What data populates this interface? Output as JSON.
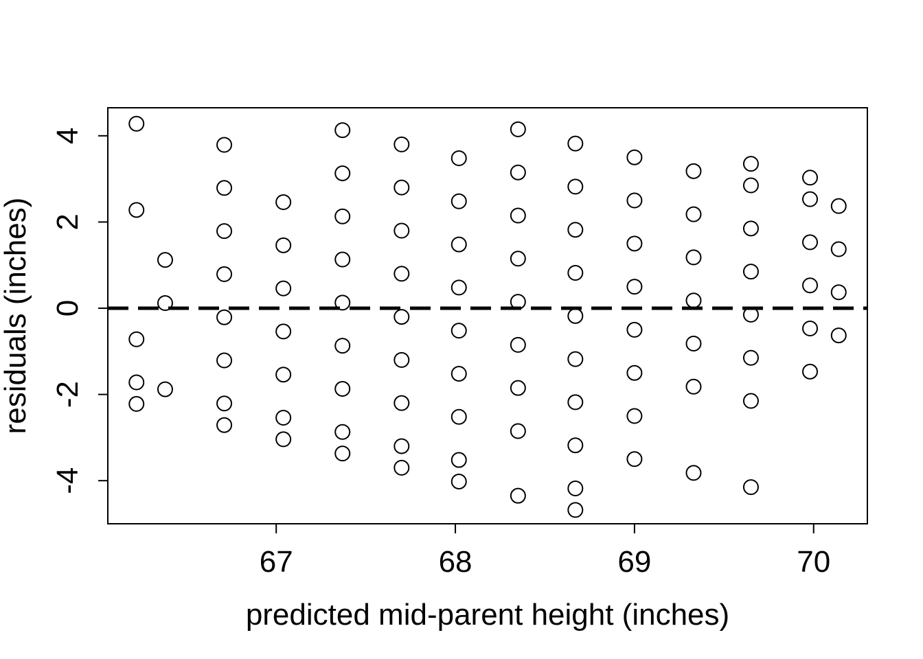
{
  "chart_data": {
    "type": "scatter",
    "title": "",
    "xlabel": "predicted mid-parent height (inches)",
    "ylabel": "residuals (inches)",
    "xlim": [
      66.06,
      70.3
    ],
    "ylim": [
      -5.0,
      4.65
    ],
    "x_ticks": [
      67,
      68,
      69,
      70
    ],
    "y_ticks": [
      -4,
      -2,
      0,
      2,
      4
    ],
    "grid": false,
    "legend": "none",
    "marker": "open-circle",
    "reference_line": {
      "y": 0,
      "style": "dashed",
      "color": "#000000"
    },
    "colors": {
      "points": "#000000",
      "background": "#ffffff"
    },
    "series": [
      {
        "points": [
          [
            66.22,
            4.28
          ],
          [
            66.22,
            2.28
          ],
          [
            66.22,
            -0.72
          ],
          [
            66.22,
            -1.72
          ],
          [
            66.22,
            -2.22
          ],
          [
            66.38,
            1.12
          ],
          [
            66.38,
            0.12
          ],
          [
            66.38,
            -1.88
          ],
          [
            66.71,
            3.79
          ],
          [
            66.71,
            2.79
          ],
          [
            66.71,
            1.79
          ],
          [
            66.71,
            0.79
          ],
          [
            66.71,
            -0.21
          ],
          [
            66.71,
            -1.21
          ],
          [
            66.71,
            -2.21
          ],
          [
            66.71,
            -2.71
          ],
          [
            67.04,
            2.46
          ],
          [
            67.04,
            1.46
          ],
          [
            67.04,
            0.46
          ],
          [
            67.04,
            -0.54
          ],
          [
            67.04,
            -1.54
          ],
          [
            67.04,
            -2.54
          ],
          [
            67.04,
            -3.04
          ],
          [
            67.37,
            4.13
          ],
          [
            67.37,
            3.13
          ],
          [
            67.37,
            2.13
          ],
          [
            67.37,
            1.13
          ],
          [
            67.37,
            0.13
          ],
          [
            67.37,
            -0.87
          ],
          [
            67.37,
            -1.87
          ],
          [
            67.37,
            -2.87
          ],
          [
            67.37,
            -3.37
          ],
          [
            67.7,
            3.8
          ],
          [
            67.7,
            2.8
          ],
          [
            67.7,
            1.8
          ],
          [
            67.7,
            0.8
          ],
          [
            67.7,
            -0.2
          ],
          [
            67.7,
            -1.2
          ],
          [
            67.7,
            -2.2
          ],
          [
            67.7,
            -3.2
          ],
          [
            67.7,
            -3.7
          ],
          [
            68.02,
            3.48
          ],
          [
            68.02,
            2.48
          ],
          [
            68.02,
            1.48
          ],
          [
            68.02,
            0.48
          ],
          [
            68.02,
            -0.52
          ],
          [
            68.02,
            -1.52
          ],
          [
            68.02,
            -2.52
          ],
          [
            68.02,
            -3.52
          ],
          [
            68.02,
            -4.02
          ],
          [
            68.35,
            4.15
          ],
          [
            68.35,
            3.15
          ],
          [
            68.35,
            2.15
          ],
          [
            68.35,
            1.15
          ],
          [
            68.35,
            0.15
          ],
          [
            68.35,
            -0.85
          ],
          [
            68.35,
            -1.85
          ],
          [
            68.35,
            -2.85
          ],
          [
            68.35,
            -4.35
          ],
          [
            68.67,
            3.82
          ],
          [
            68.67,
            2.82
          ],
          [
            68.67,
            1.82
          ],
          [
            68.67,
            0.82
          ],
          [
            68.67,
            -0.18
          ],
          [
            68.67,
            -1.18
          ],
          [
            68.67,
            -2.18
          ],
          [
            68.67,
            -3.18
          ],
          [
            68.67,
            -4.18
          ],
          [
            68.67,
            -4.68
          ],
          [
            69.0,
            3.5
          ],
          [
            69.0,
            2.5
          ],
          [
            69.0,
            1.5
          ],
          [
            69.0,
            0.5
          ],
          [
            69.0,
            -0.5
          ],
          [
            69.0,
            -1.5
          ],
          [
            69.0,
            -2.5
          ],
          [
            69.0,
            -3.5
          ],
          [
            69.33,
            3.18
          ],
          [
            69.33,
            2.18
          ],
          [
            69.33,
            1.18
          ],
          [
            69.33,
            0.18
          ],
          [
            69.33,
            -0.82
          ],
          [
            69.33,
            -1.82
          ],
          [
            69.33,
            -3.82
          ],
          [
            69.65,
            3.35
          ],
          [
            69.65,
            2.85
          ],
          [
            69.65,
            1.85
          ],
          [
            69.65,
            0.85
          ],
          [
            69.65,
            -0.15
          ],
          [
            69.65,
            -1.15
          ],
          [
            69.65,
            -2.15
          ],
          [
            69.65,
            -4.15
          ],
          [
            69.98,
            3.03
          ],
          [
            69.98,
            2.53
          ],
          [
            69.98,
            1.53
          ],
          [
            69.98,
            0.53
          ],
          [
            69.98,
            -0.47
          ],
          [
            69.98,
            -1.47
          ],
          [
            70.14,
            2.37
          ],
          [
            70.14,
            1.37
          ],
          [
            70.14,
            0.37
          ],
          [
            70.14,
            -0.63
          ]
        ]
      }
    ]
  }
}
